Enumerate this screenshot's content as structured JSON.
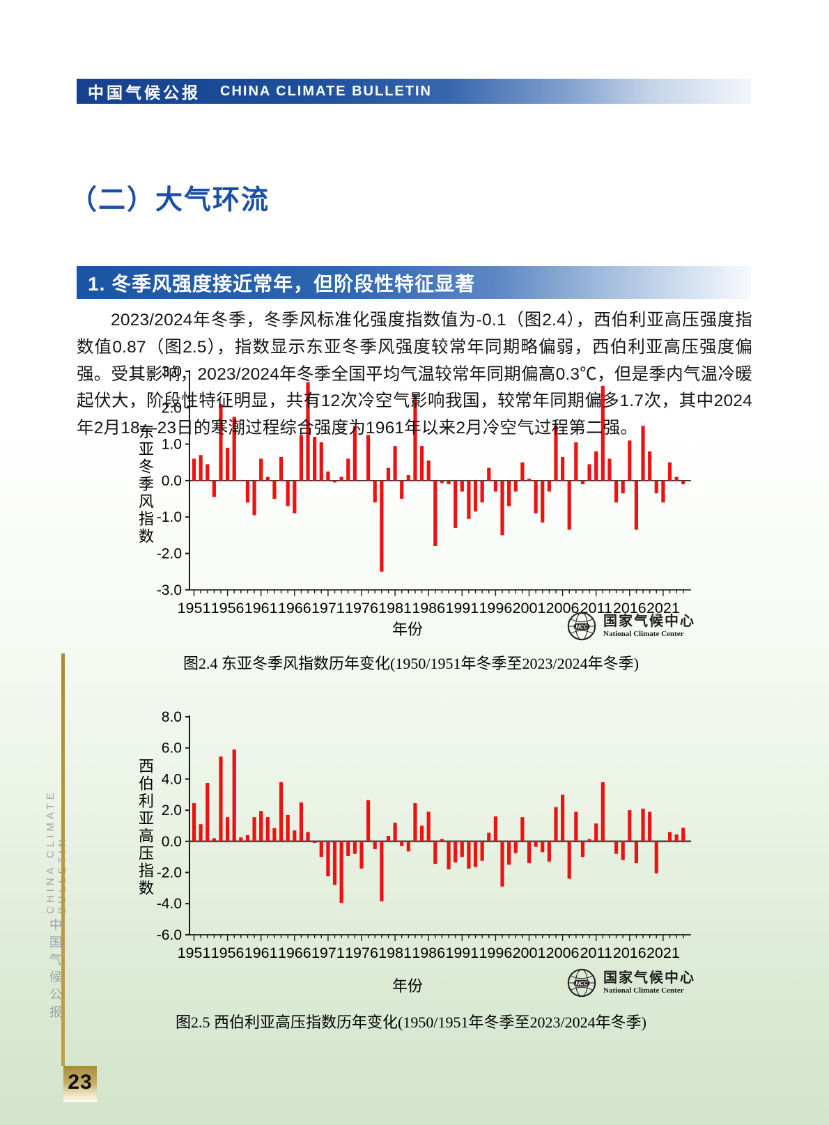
{
  "header": {
    "title_cn": "中国气候公报",
    "title_en": "CHINA CLIMATE BULLETIN"
  },
  "section_title": "（二）大气环流",
  "subsection_banner": "1. 冬季风强度接近常年，但阶段性特征显著",
  "paragraph": "2023/2024年冬季，冬季风标准化强度指数值为-0.1（图2.4），西伯利亚高压强度指数值0.87（图2.5），指数显示东亚冬季风强度较常年同期略偏弱，西伯利亚高压强度偏强。受其影响，2023/2024年冬季全国平均气温较常年同期偏高0.3℃，但是季内气温冷暖起伏大，阶段性特征明显，共有12次冷空气影响我国，较常年同期偏多1.7次，其中2024年2月18—23日的寒潮过程综合强度为1961年以来2月冷空气过程第二强。",
  "logo": {
    "emblem_text": "NCC",
    "name_cn": "国家气候中心",
    "name_en": "National Climate Center"
  },
  "sidebar": {
    "text_cn": "中国气候公报",
    "text_en": "CHINA CLIMATE BULLETIN"
  },
  "page_number": "23",
  "colors": {
    "banner_blue_dark": "#15418d",
    "banner_blue_mid": "#2e66b1",
    "title_blue": "#1b4ea8",
    "bar_red": "#ec1212",
    "gold": "#b4973e",
    "sidebar_gray": "#9aa4aa"
  },
  "chart_data": [
    {
      "type": "bar",
      "title_caption": "图2.4 东亚冬季风指数历年变化(1950/1951年冬季至2023/2024年冬季)",
      "ylabel": "东亚冬季风指数",
      "xlabel": "年份",
      "ylim": [
        -3.0,
        3.0
      ],
      "ytick_step": 1.0,
      "xtick_labels": [
        "1951",
        "1956",
        "1961",
        "1966",
        "1971",
        "1976",
        "1981",
        "1986",
        "1991",
        "1996",
        "2001",
        "2006",
        "2011",
        "2016",
        "2021"
      ],
      "bar_color": "#ec1212",
      "grid": false,
      "legend": null,
      "years": [
        1951,
        1952,
        1953,
        1954,
        1955,
        1956,
        1957,
        1958,
        1959,
        1960,
        1961,
        1962,
        1963,
        1964,
        1965,
        1966,
        1967,
        1968,
        1969,
        1970,
        1971,
        1972,
        1973,
        1974,
        1975,
        1976,
        1977,
        1978,
        1979,
        1980,
        1981,
        1982,
        1983,
        1984,
        1985,
        1986,
        1987,
        1988,
        1989,
        1990,
        1991,
        1992,
        1993,
        1994,
        1995,
        1996,
        1997,
        1998,
        1999,
        2000,
        2001,
        2002,
        2003,
        2004,
        2005,
        2006,
        2007,
        2008,
        2009,
        2010,
        2011,
        2012,
        2013,
        2014,
        2015,
        2016,
        2017,
        2018,
        2019,
        2020,
        2021,
        2022,
        2023,
        2024
      ],
      "values": [
        0.6,
        0.7,
        0.45,
        -0.45,
        2.1,
        0.9,
        1.75,
        0.02,
        -0.6,
        -0.95,
        0.6,
        0.1,
        -0.5,
        0.65,
        -0.7,
        -0.9,
        1.25,
        2.7,
        1.2,
        1.05,
        0.25,
        -0.05,
        0.1,
        0.6,
        1.5,
        0.0,
        1.25,
        -0.6,
        -2.5,
        0.35,
        0.95,
        -0.5,
        0.15,
        2.35,
        0.95,
        0.55,
        -1.8,
        -0.07,
        -0.1,
        -1.3,
        -0.3,
        -1.05,
        -0.85,
        -0.6,
        0.35,
        -0.3,
        -1.5,
        -0.7,
        -0.3,
        0.5,
        0.05,
        -0.9,
        -1.15,
        -0.3,
        1.5,
        0.65,
        -1.35,
        1.05,
        -0.1,
        0.45,
        0.8,
        2.6,
        0.6,
        -0.6,
        -0.35,
        1.1,
        -1.35,
        1.5,
        0.8,
        -0.35,
        -0.6,
        0.5,
        0.1,
        -0.1
      ]
    },
    {
      "type": "bar",
      "title_caption": "图2.5 西伯利亚高压指数历年变化(1950/1951年冬季至2023/2024年冬季)",
      "ylabel": "西伯利亚高压指数",
      "xlabel": "年份",
      "ylim": [
        -6.0,
        8.0
      ],
      "ytick_step": 2.0,
      "xtick_labels": [
        "1951",
        "1956",
        "1961",
        "1966",
        "1971",
        "1976",
        "1981",
        "1986",
        "1991",
        "1996",
        "2001",
        "2006",
        "2011",
        "2016",
        "2021"
      ],
      "bar_color": "#ec1212",
      "grid": false,
      "legend": null,
      "years": [
        1951,
        1952,
        1953,
        1954,
        1955,
        1956,
        1957,
        1958,
        1959,
        1960,
        1961,
        1962,
        1963,
        1964,
        1965,
        1966,
        1967,
        1968,
        1969,
        1970,
        1971,
        1972,
        1973,
        1974,
        1975,
        1976,
        1977,
        1978,
        1979,
        1980,
        1981,
        1982,
        1983,
        1984,
        1985,
        1986,
        1987,
        1988,
        1989,
        1990,
        1991,
        1992,
        1993,
        1994,
        1995,
        1996,
        1997,
        1998,
        1999,
        2000,
        2001,
        2002,
        2003,
        2004,
        2005,
        2006,
        2007,
        2008,
        2009,
        2010,
        2011,
        2012,
        2013,
        2014,
        2015,
        2016,
        2017,
        2018,
        2019,
        2020,
        2021,
        2022,
        2023,
        2024
      ],
      "values": [
        2.45,
        1.1,
        3.75,
        0.2,
        5.45,
        1.55,
        5.9,
        0.25,
        0.4,
        1.55,
        1.95,
        1.55,
        0.85,
        3.8,
        1.7,
        0.7,
        2.5,
        0.6,
        -0.1,
        -1.0,
        -2.25,
        -2.8,
        -3.95,
        -0.95,
        -0.8,
        -1.75,
        2.65,
        -0.5,
        -3.85,
        0.35,
        1.2,
        -0.3,
        -0.65,
        2.45,
        1.0,
        1.9,
        -1.45,
        0.15,
        -1.8,
        -1.35,
        -1.0,
        -1.75,
        -1.65,
        -1.25,
        0.55,
        1.6,
        -2.9,
        -1.5,
        -0.75,
        1.55,
        -1.4,
        -0.35,
        -0.7,
        -1.3,
        2.2,
        3.0,
        -2.4,
        1.9,
        -1.0,
        0.15,
        1.15,
        3.8,
        0.05,
        -0.8,
        -1.2,
        2.0,
        -1.4,
        2.1,
        1.9,
        -2.05,
        0.0,
        0.6,
        0.45,
        0.87
      ]
    }
  ]
}
